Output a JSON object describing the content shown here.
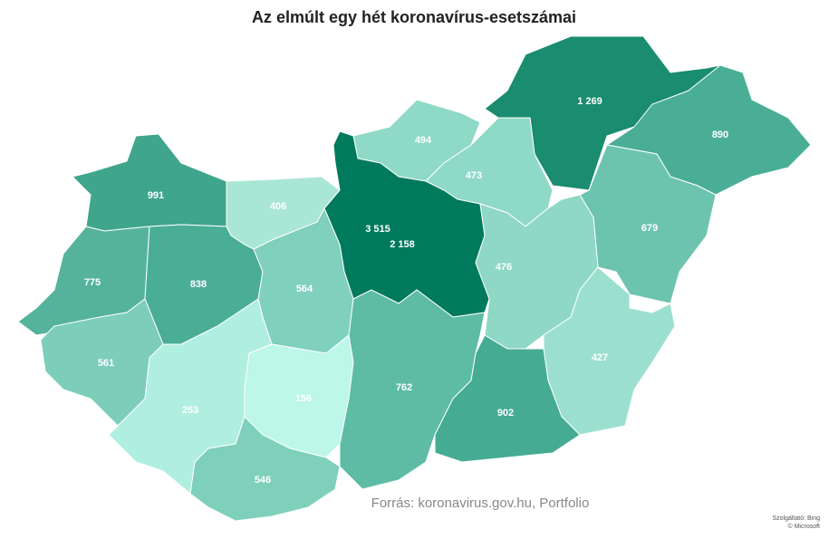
{
  "chart_data": {
    "type": "choropleth",
    "title": "Az elmúlt egy hét koronavírus-esetszámai",
    "values": [
      991,
      406,
      494,
      1269,
      890,
      473,
      3515,
      2158,
      679,
      775,
      838,
      564,
      476,
      561,
      427,
      253,
      156,
      762,
      902,
      546
    ],
    "value_labels": [
      "991",
      "406",
      "494",
      "1 269",
      "890",
      "473",
      "3 515",
      "2 158",
      "679",
      "775",
      "838",
      "564",
      "476",
      "561",
      "427",
      "253",
      "156",
      "762",
      "902",
      "546"
    ],
    "colors": [
      "#3fa58c",
      "#a9e6d6",
      "#8fd9c7",
      "#1a8c6f",
      "#4aae97",
      "#8fd9c7",
      "#00775a",
      "#007a5c",
      "#6cc4ae",
      "#55b39c",
      "#4aad96",
      "#7fd0bc",
      "#8ed8c5",
      "#7ccdb9",
      "#9be0ce",
      "#b0efdf",
      "#bcf7e8",
      "#5ebca5",
      "#45ab93",
      "#7ed0bb"
    ],
    "source": "Forrás: koronavirus.gov.hu, Portfolio",
    "attribution": [
      "Szolgáltató: Bing",
      "© Microsoft"
    ]
  }
}
